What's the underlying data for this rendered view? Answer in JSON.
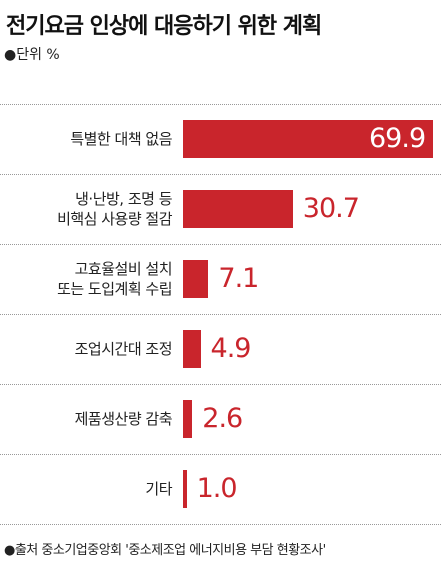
{
  "chart_data": {
    "type": "bar",
    "orientation": "horizontal",
    "title": "전기요금 인상에 대응하기 위한 계획",
    "unit_label": "●단위 %",
    "categories": [
      "특별한 대책 없음",
      "냉·난방, 조명 등\n비핵심 사용량 절감",
      "고효율설비 설치\n또는 도입계획 수립",
      "조업시간대 조정",
      "제품생산량 감축",
      "기타"
    ],
    "values": [
      69.9,
      30.7,
      7.1,
      4.9,
      2.6,
      1.0
    ],
    "value_labels": [
      "69.9",
      "30.7",
      "7.1",
      "4.9",
      "2.6",
      "1.0"
    ],
    "color": "#c9252c",
    "source": "●출처 중소기업중앙회 '중소제조업 에너지비용 부담 현황조사'"
  }
}
